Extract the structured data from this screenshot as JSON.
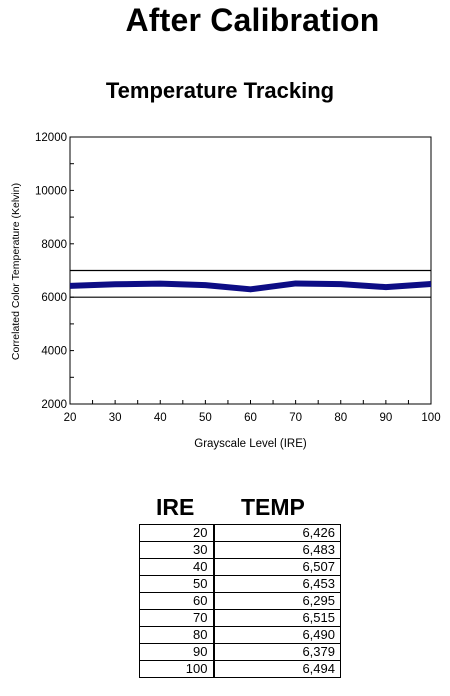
{
  "page": {
    "title": "After Calibration"
  },
  "chart_data": {
    "type": "line",
    "title": "Temperature Tracking",
    "xlabel": "Grayscale Level (IRE)",
    "ylabel": "Correlated Color Temperature (Kelvin)",
    "x": [
      20,
      30,
      40,
      50,
      60,
      70,
      80,
      90,
      100
    ],
    "series": [
      {
        "values": [
          6426,
          6483,
          6507,
          6453,
          6295,
          6515,
          6490,
          6379,
          6494
        ],
        "color": "#0d0d85"
      }
    ],
    "reference_lines": [
      6000,
      7000
    ],
    "xlim": [
      20,
      100
    ],
    "ylim": [
      2000,
      12000
    ],
    "x_ticks": [
      20,
      30,
      40,
      50,
      60,
      70,
      80,
      90,
      100
    ],
    "y_ticks": [
      2000,
      4000,
      6000,
      8000,
      10000,
      12000
    ],
    "y_minor_step": 1000,
    "x_minor_step": 5,
    "grid": false,
    "legend": "none"
  },
  "table": {
    "headers": [
      "IRE",
      "TEMP"
    ],
    "rows": [
      [
        "20",
        "6,426"
      ],
      [
        "30",
        "6,483"
      ],
      [
        "40",
        "6,507"
      ],
      [
        "50",
        "6,453"
      ],
      [
        "60",
        "6,295"
      ],
      [
        "70",
        "6,515"
      ],
      [
        "80",
        "6,490"
      ],
      [
        "90",
        "6,379"
      ],
      [
        "100",
        "6,494"
      ]
    ]
  }
}
